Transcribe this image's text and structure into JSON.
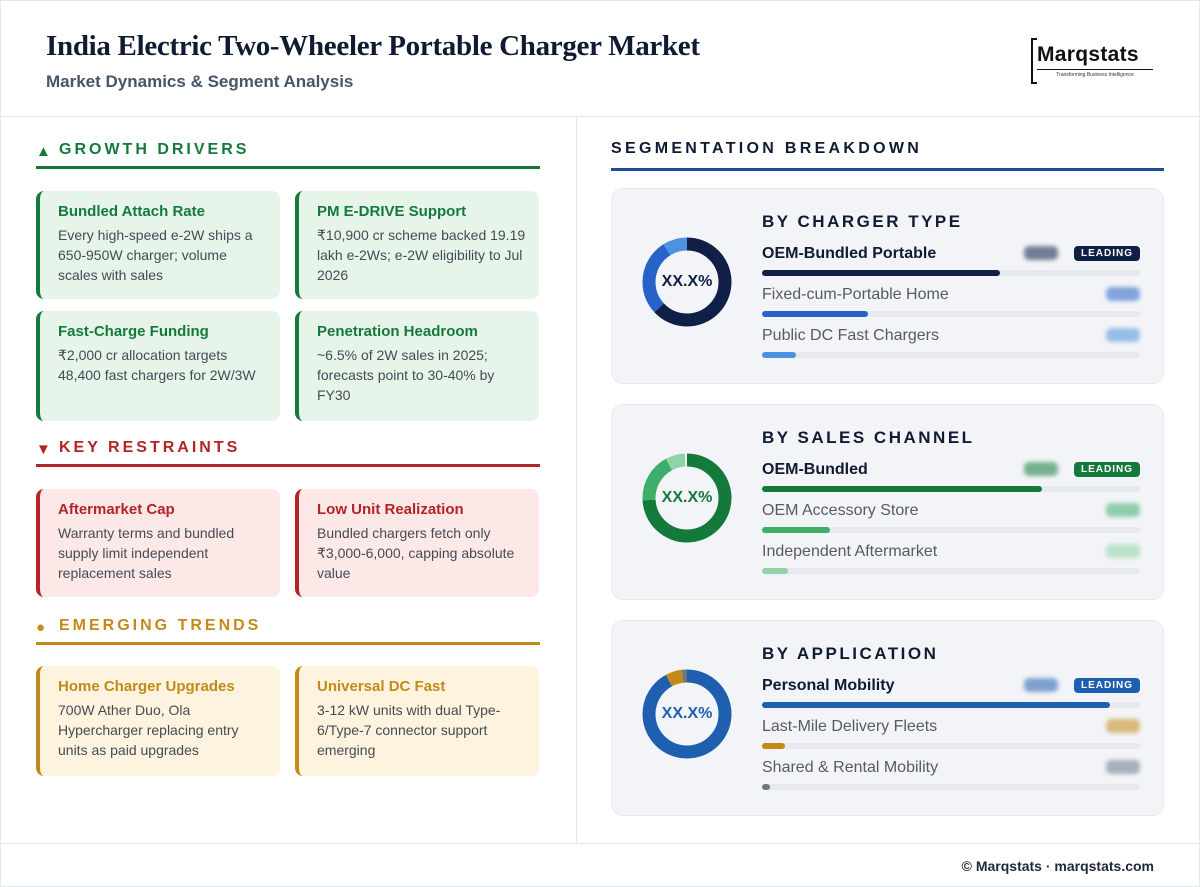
{
  "header": {
    "title": "India Electric Two-Wheeler Portable Charger Market",
    "subtitle": "Market Dynamics & Segment Analysis",
    "logo_text": "Marqstats",
    "logo_tagline": "Transforming Business Intelligence"
  },
  "drivers": {
    "title": "GROWTH DRIVERS",
    "marker_icon": "up-triangle",
    "color": "#137a3c",
    "cards": [
      {
        "title": "Bundled Attach Rate",
        "text": "Every high-speed e-2W ships a 650-950W charger; volume scales with sales"
      },
      {
        "title": "PM E-DRIVE Support",
        "text": "₹10,900 cr scheme backed 19.19 lakh e-2Ws; e-2W eligibility to Jul 2026"
      },
      {
        "title": "Fast-Charge Funding",
        "text": "₹2,000 cr allocation targets 48,400 fast chargers for 2W/3W"
      },
      {
        "title": "Penetration Headroom",
        "text": "~6.5% of 2W sales in 2025; forecasts point to 30-40% by FY30"
      }
    ]
  },
  "restraints": {
    "title": "KEY RESTRAINTS",
    "marker_icon": "down-triangle",
    "color": "#b42326",
    "cards": [
      {
        "title": "Aftermarket Cap",
        "text": "Warranty terms and bundled supply limit independent replacement sales"
      },
      {
        "title": "Low Unit Realization",
        "text": "Bundled chargers fetch only ₹3,000-6,000, capping absolute value"
      }
    ]
  },
  "trends": {
    "title": "EMERGING TRENDS",
    "marker_icon": "circle",
    "color": "#c48a19",
    "cards": [
      {
        "title": "Home Charger Upgrades",
        "text": "700W Ather Duo, Ola Hypercharger replacing entry units as paid upgrades"
      },
      {
        "title": "Universal DC Fast",
        "text": "3-12 kW units with dual Type-6/Type-7 connector support emerging"
      }
    ]
  },
  "segmentation": {
    "title": "SEGMENTATION BREAKDOWN",
    "leading_label": "LEADING",
    "panels": [
      {
        "title": "BY CHARGER TYPE",
        "center_label": "XX.X%",
        "accent": "#0f1f45",
        "rows": [
          {
            "name": "OEM-Bundled Portable",
            "share": 0.63,
            "color": "#0f1f45"
          },
          {
            "name": "Fixed-cum-Portable Home",
            "share": 0.28,
            "color": "#2563c9"
          },
          {
            "name": "Public DC Fast Chargers",
            "share": 0.09,
            "color": "#4d92e0"
          }
        ]
      },
      {
        "title": "BY SALES CHANNEL",
        "center_label": "XX.X%",
        "accent": "#137a3c",
        "rows": [
          {
            "name": "OEM-Bundled",
            "share": 0.74,
            "color": "#137a3c"
          },
          {
            "name": "OEM Accessory Store",
            "share": 0.18,
            "color": "#3fae6a"
          },
          {
            "name": "Independent Aftermarket",
            "share": 0.07,
            "color": "#8fd3a8"
          }
        ]
      },
      {
        "title": "BY APPLICATION",
        "center_label": "XX.X%",
        "accent": "#1f5fb0",
        "rows": [
          {
            "name": "Personal Mobility",
            "share": 0.92,
            "color": "#1f5fb0"
          },
          {
            "name": "Last-Mile Delivery Fleets",
            "share": 0.06,
            "color": "#c48a19"
          },
          {
            "name": "Shared & Rental Mobility",
            "share": 0.02,
            "color": "#6b7787"
          }
        ]
      }
    ]
  },
  "footer": {
    "text": "© Marqstats · marqstats.com"
  }
}
